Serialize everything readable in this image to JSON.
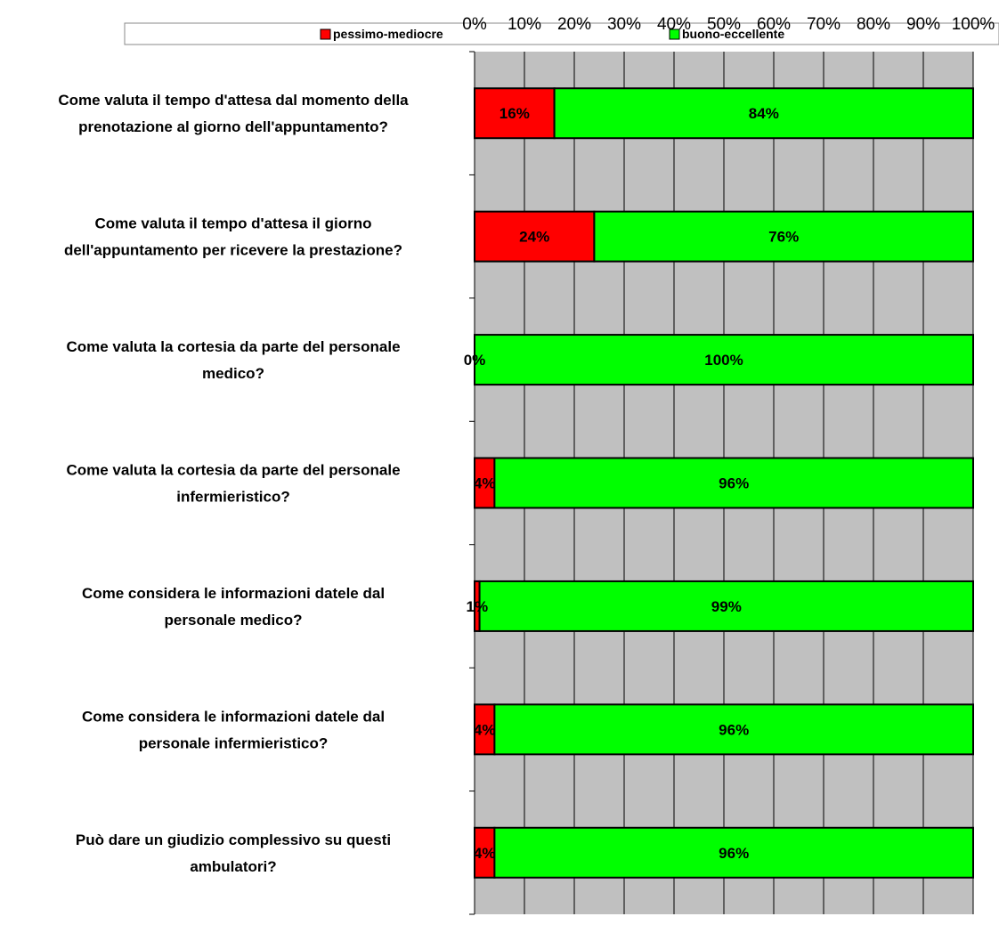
{
  "chart_data": {
    "type": "bar",
    "orientation": "horizontal",
    "stacked": "percent",
    "categories": [
      [
        "Come valuta il tempo d'attesa dal momento della",
        "prenotazione al giorno dell'appuntamento?"
      ],
      [
        "Come valuta il tempo d'attesa il giorno",
        "dell'appuntamento per ricevere la prestazione?"
      ],
      [
        "Come valuta la cortesia da parte del personale",
        "medico?"
      ],
      [
        "Come valuta la cortesia da parte del personale",
        "infermieristico?"
      ],
      [
        "Come considera le informazioni datele dal",
        "personale medico?"
      ],
      [
        "Come considera le informazioni datele dal",
        "personale infermieristico?"
      ],
      [
        "Può dare un giudizio complessivo su questi",
        "ambulatori?"
      ]
    ],
    "series": [
      {
        "name": "pessimo-mediocre",
        "color": "#ff0000",
        "values": [
          16,
          24,
          0,
          4,
          1,
          4,
          4
        ],
        "labels": [
          "16%",
          "24%",
          "0%",
          "4%",
          "1%",
          "4%",
          "4%"
        ]
      },
      {
        "name": "buono-eccellente",
        "color": "#00ff00",
        "values": [
          84,
          76,
          100,
          96,
          99,
          96,
          96
        ],
        "labels": [
          "84%",
          "76%",
          "100%",
          "96%",
          "99%",
          "96%",
          "96%"
        ]
      }
    ],
    "x_ticks": [
      "0%",
      "10%",
      "20%",
      "30%",
      "40%",
      "50%",
      "60%",
      "70%",
      "80%",
      "90%",
      "100%"
    ],
    "xlim": [
      0,
      100
    ],
    "grid": true,
    "plot_background": "#c0c0c0",
    "legend_position": "top"
  }
}
